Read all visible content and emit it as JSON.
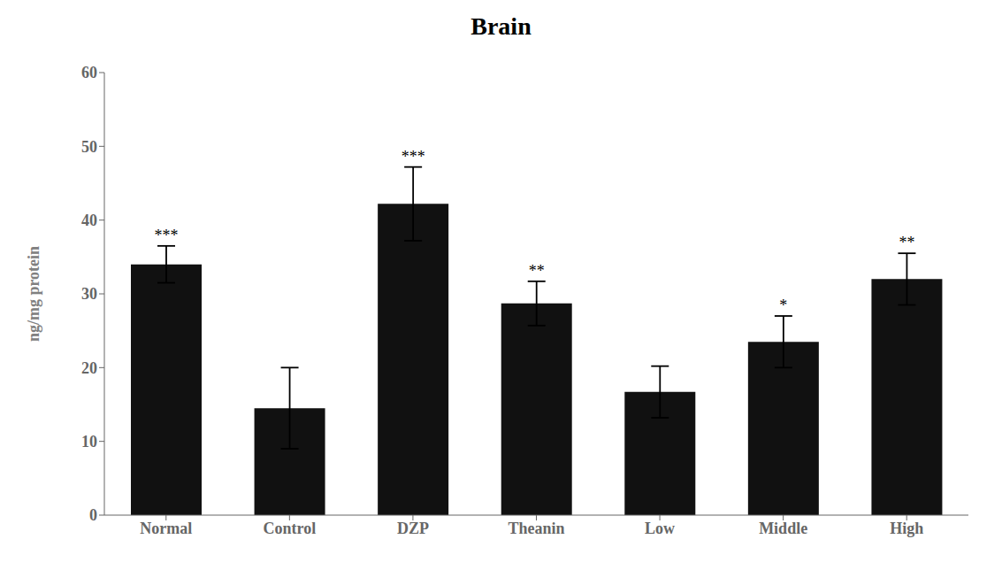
{
  "chart_data": {
    "type": "bar",
    "title": "Brain",
    "ylabel": "ng/mg protein",
    "categories": [
      "Normal",
      "Control",
      "DZP",
      "Theanin",
      "Low",
      "Middle",
      "High"
    ],
    "values": [
      34.0,
      14.5,
      42.2,
      28.7,
      16.7,
      23.5,
      32.0
    ],
    "errors": [
      2.5,
      5.5,
      5.0,
      3.0,
      3.5,
      3.5,
      3.5
    ],
    "annotations": [
      "***",
      null,
      "***",
      "**",
      null,
      "*",
      "**"
    ],
    "color": "#111111",
    "ylim": [
      0,
      60
    ],
    "yticks": [
      0,
      10,
      20,
      30,
      40,
      50,
      60
    ],
    "grid": false
  }
}
